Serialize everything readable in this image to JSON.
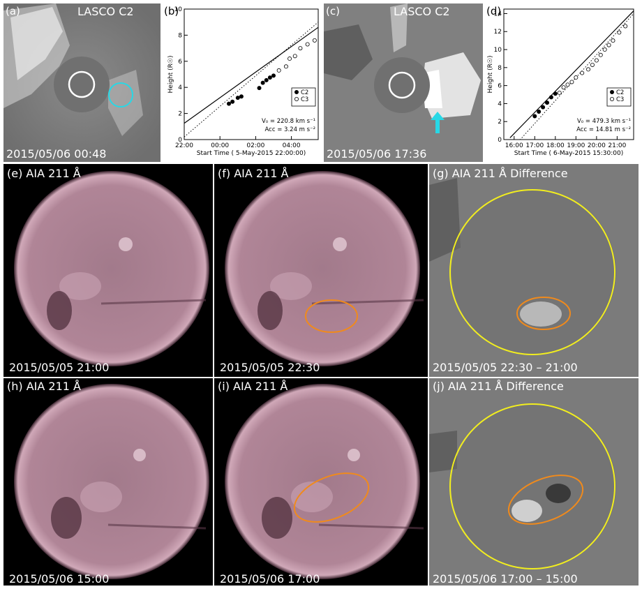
{
  "panels": {
    "a": {
      "label": "(a)",
      "instrument": "LASCO C2",
      "timestamp": "2015/05/06 00:48"
    },
    "b": {
      "label": "(b)"
    },
    "c": {
      "label": "(c)",
      "instrument": "LASCO C2",
      "timestamp": "2015/05/06 17:36"
    },
    "d": {
      "label": "(d)"
    },
    "e": {
      "label": "(e) AIA 211 Å",
      "timestamp": "2015/05/05 21:00"
    },
    "f": {
      "label": "(f) AIA 211 Å",
      "timestamp": "2015/05/05 22:30"
    },
    "g": {
      "label": "(g) AIA 211 Å Difference",
      "timestamp": "2015/05/05 22:30 – 21:00"
    },
    "h": {
      "label": "(h) AIA 211 Å",
      "timestamp": "2015/05/06 15:00"
    },
    "i": {
      "label": "(i) AIA 211 Å",
      "timestamp": "2015/05/06 17:00"
    },
    "j": {
      "label": "(j) AIA 211 Å Difference",
      "timestamp": "2015/05/06 17:00 – 15:00"
    }
  },
  "colors": {
    "lasco_bg": "#7d7d7d",
    "occulter": "#707070",
    "aia_disk": "#b98c9f",
    "diff_bg": "#7b7b7b",
    "limb_circle": "#f2ee1e",
    "region_ellipse": "#f08a1c",
    "cme_marker": "#27d8e6"
  },
  "chart_data": [
    {
      "type": "scatter",
      "panel": "b",
      "xlabel": "Start Time ( 5-May-2015 22:00:00)",
      "ylabel": "Height (R☉)",
      "x_ticks": [
        "22:00",
        "00:00",
        "02:00",
        "04:00"
      ],
      "y_ticks": [
        0,
        2,
        4,
        6,
        8,
        10
      ],
      "xlim": [
        0,
        7.5
      ],
      "ylim": [
        0,
        10
      ],
      "legend": [
        "C2",
        "C3"
      ],
      "legend_position": "bottom-right",
      "fit_text": [
        "V₀ =  220.8 km s⁻¹",
        "Acc =  3.24 m s⁻²"
      ],
      "series": [
        {
          "name": "C2",
          "x": [
            2.5,
            2.7,
            3.0,
            3.2,
            4.2,
            4.4,
            4.6,
            4.8,
            5.0
          ],
          "y": [
            2.75,
            2.9,
            3.2,
            3.3,
            3.95,
            4.35,
            4.55,
            4.75,
            4.9
          ]
        },
        {
          "name": "C3",
          "x": [
            5.3,
            5.7,
            5.9,
            6.2,
            6.5,
            6.9,
            7.3
          ],
          "y": [
            5.3,
            5.6,
            6.2,
            6.4,
            7.0,
            7.3,
            7.6
          ]
        }
      ],
      "fit_solid": {
        "x": [
          0,
          7.5
        ],
        "y": [
          1.25,
          8.6
        ]
      },
      "fit_dotted": {
        "x": [
          0,
          7.5
        ],
        "y": [
          0.2,
          9.0
        ]
      }
    },
    {
      "type": "scatter",
      "panel": "d",
      "xlabel": "Start Time ( 6-May-2015 15:30:00)",
      "ylabel": "Height (R☉)",
      "x_ticks": [
        "16:00",
        "17:00",
        "18:00",
        "19:00",
        "20:00",
        "21:00"
      ],
      "x_tick_values": [
        0.5,
        1.5,
        2.5,
        3.5,
        4.5,
        5.5
      ],
      "y_ticks": [
        0,
        2,
        4,
        6,
        8,
        10,
        12,
        14
      ],
      "xlim": [
        0,
        6.3
      ],
      "ylim": [
        0,
        14.5
      ],
      "legend": [
        "C2",
        "C3"
      ],
      "legend_position": "bottom-right",
      "fit_text": [
        "V₀ =  479.3 km s⁻¹",
        "Acc =  14.81 m s⁻²"
      ],
      "series": [
        {
          "name": "C2",
          "x": [
            1.5,
            1.7,
            1.9,
            2.1,
            2.3,
            2.5
          ],
          "y": [
            2.6,
            3.1,
            3.6,
            4.1,
            4.7,
            5.1
          ]
        },
        {
          "name": "C3",
          "x": [
            2.7,
            2.9,
            3.1,
            3.3,
            3.5,
            3.8,
            4.1,
            4.3,
            4.5,
            4.7,
            4.9,
            5.1,
            5.3,
            5.6,
            5.9
          ],
          "y": [
            5.2,
            5.8,
            6.1,
            6.4,
            6.9,
            7.4,
            7.8,
            8.3,
            8.8,
            9.4,
            10.0,
            10.5,
            11.0,
            11.9,
            12.6
          ]
        }
      ],
      "fit_solid": {
        "x": [
          0.3,
          6.3
        ],
        "y": [
          0.2,
          14.3
        ]
      },
      "fit_dotted": {
        "x": [
          0.6,
          6.3
        ],
        "y": [
          -0.5,
          14.0
        ]
      }
    }
  ]
}
